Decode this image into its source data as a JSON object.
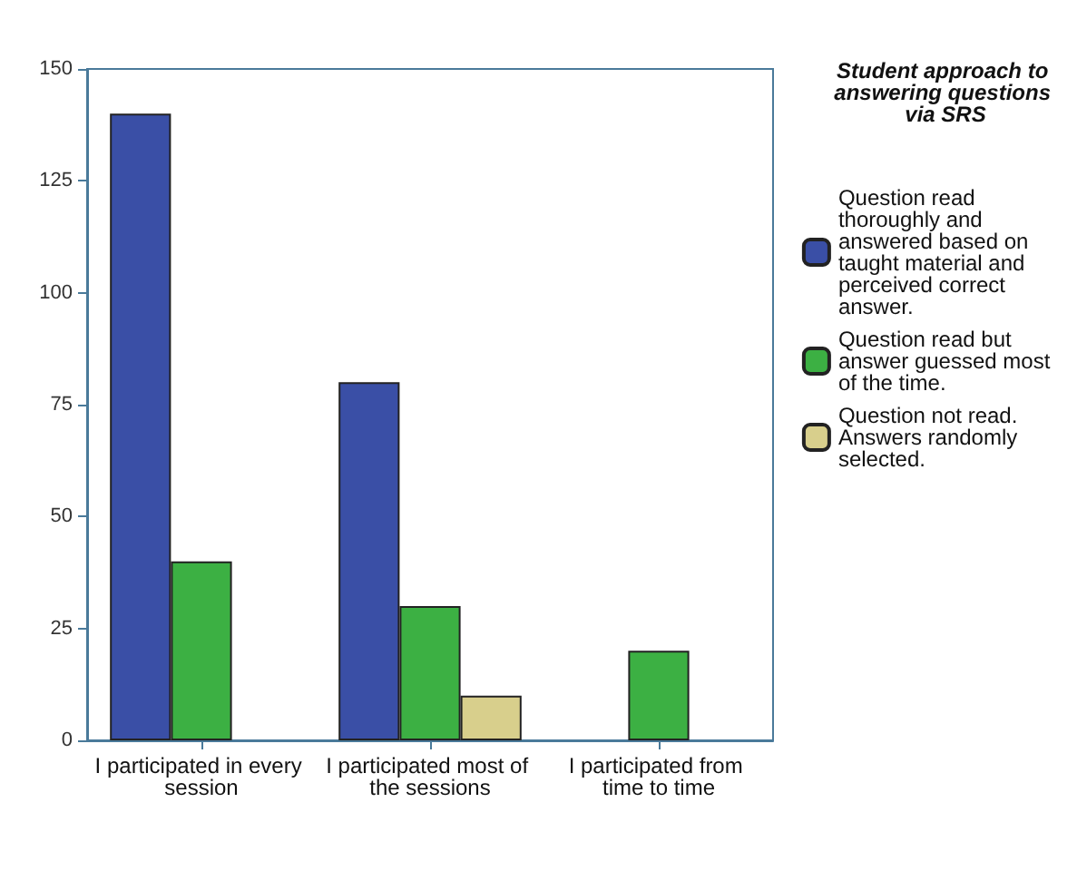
{
  "chart_data": {
    "type": "bar",
    "legend_title": "Student approach to answering questions via SRS",
    "legend": "right",
    "grid": false,
    "categories": [
      "I participated in every session",
      "I participated most of the sessions",
      "I participated from time to time"
    ],
    "ylim": [
      0,
      150
    ],
    "yticks": [
      0,
      25,
      50,
      75,
      100,
      125,
      150
    ],
    "series": [
      {
        "name": "Question read thoroughly and answered based on taught material and perceived correct answer.",
        "color": "#3a4fa6",
        "values": [
          140,
          80,
          null
        ]
      },
      {
        "name": "Question read but answer guessed most of the time.",
        "color": "#3cb043",
        "values": [
          40,
          30,
          20
        ]
      },
      {
        "name": "Question not read. Answers randomly selected.",
        "color": "#d8cf8c",
        "values": [
          null,
          10,
          null
        ]
      }
    ]
  }
}
